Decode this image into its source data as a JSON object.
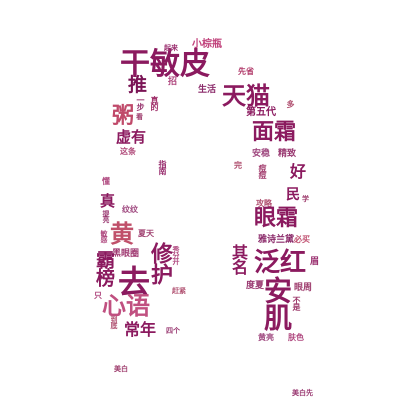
{
  "words": [
    {
      "text": "干敏皮",
      "color": "#8b1a5f"
    },
    {
      "text": "天猫",
      "color": "#8b1a5f"
    },
    {
      "text": "小棕瓶",
      "color": "#c0407a"
    },
    {
      "text": "起来",
      "color": "#9b3070"
    },
    {
      "text": "先省",
      "color": "#b03868"
    },
    {
      "text": "推",
      "color": "#7a1455"
    },
    {
      "text": "真的",
      "color": "#a0306a"
    },
    {
      "text": "招",
      "color": "#b04a80"
    },
    {
      "text": "生活",
      "color": "#8b2a6a"
    },
    {
      "text": "一步",
      "color": "#9a3a72"
    },
    {
      "text": "粥",
      "color": "#c04a6a"
    },
    {
      "text": "看",
      "color": "#a04070"
    },
    {
      "text": "第五代",
      "color": "#8b1a5f"
    },
    {
      "text": "多",
      "color": "#b05070"
    },
    {
      "text": "面霜",
      "color": "#8b1a5f"
    },
    {
      "text": "虚有",
      "color": "#8b1a5f"
    },
    {
      "text": "这条",
      "color": "#b04a7a"
    },
    {
      "text": "安稳",
      "color": "#a04a80"
    },
    {
      "text": "精致",
      "color": "#9a3a72"
    },
    {
      "text": "完",
      "color": "#b05070"
    },
    {
      "text": "好",
      "color": "#8b1a5f"
    },
    {
      "text": "指南",
      "color": "#9a3070"
    },
    {
      "text": "痘痘",
      "color": "#a0386a"
    },
    {
      "text": "懂",
      "color": "#b04a80"
    },
    {
      "text": "民",
      "color": "#8b1a5f"
    },
    {
      "text": "学",
      "color": "#a04070"
    },
    {
      "text": "真",
      "color": "#8b1a5f"
    },
    {
      "text": "纹纹",
      "color": "#a04a80"
    },
    {
      "text": "攻略",
      "color": "#b05070"
    },
    {
      "text": "提亮",
      "color": "#9a3a72"
    },
    {
      "text": "眼霜",
      "color": "#8b1a5f"
    },
    {
      "text": "黄",
      "color": "#c0506a"
    },
    {
      "text": "夏天",
      "color": "#a04070"
    },
    {
      "text": "敏感",
      "color": "#b04a80"
    },
    {
      "text": "雅诗兰黛",
      "color": "#8b2a6a"
    },
    {
      "text": "必买",
      "color": "#c05070"
    },
    {
      "text": "黑眼圈",
      "color": "#a03a72"
    },
    {
      "text": "霸榜",
      "color": "#8b1a5f"
    },
    {
      "text": "其名",
      "color": "#8b1a5f"
    },
    {
      "text": "泛红",
      "color": "#8b1a5f"
    },
    {
      "text": "修护",
      "color": "#8b1a5f"
    },
    {
      "text": "秀分开",
      "color": "#b04a80"
    },
    {
      "text": "眉",
      "color": "#9a3070"
    },
    {
      "text": "去",
      "color": "#8b1a5f"
    },
    {
      "text": "赶紧",
      "color": "#b05070"
    },
    {
      "text": "度夏",
      "color": "#9a3a72"
    },
    {
      "text": "眼周",
      "color": "#a04070"
    },
    {
      "text": "只",
      "color": "#b04a80"
    },
    {
      "text": "心语",
      "color": "#c05080"
    },
    {
      "text": "安肌",
      "color": "#8b1a5f"
    },
    {
      "text": "不是",
      "color": "#a04070"
    },
    {
      "text": "到底",
      "color": "#b05070"
    },
    {
      "text": "常年",
      "color": "#8b1a5f"
    },
    {
      "text": "四个",
      "color": "#9a3a72"
    },
    {
      "text": "黄亮",
      "color": "#a04a80"
    },
    {
      "text": "肤色",
      "color": "#b04a80"
    },
    {
      "text": "美白",
      "color": "#a04070"
    },
    {
      "text": "美白先",
      "color": "#9a3a72"
    }
  ]
}
